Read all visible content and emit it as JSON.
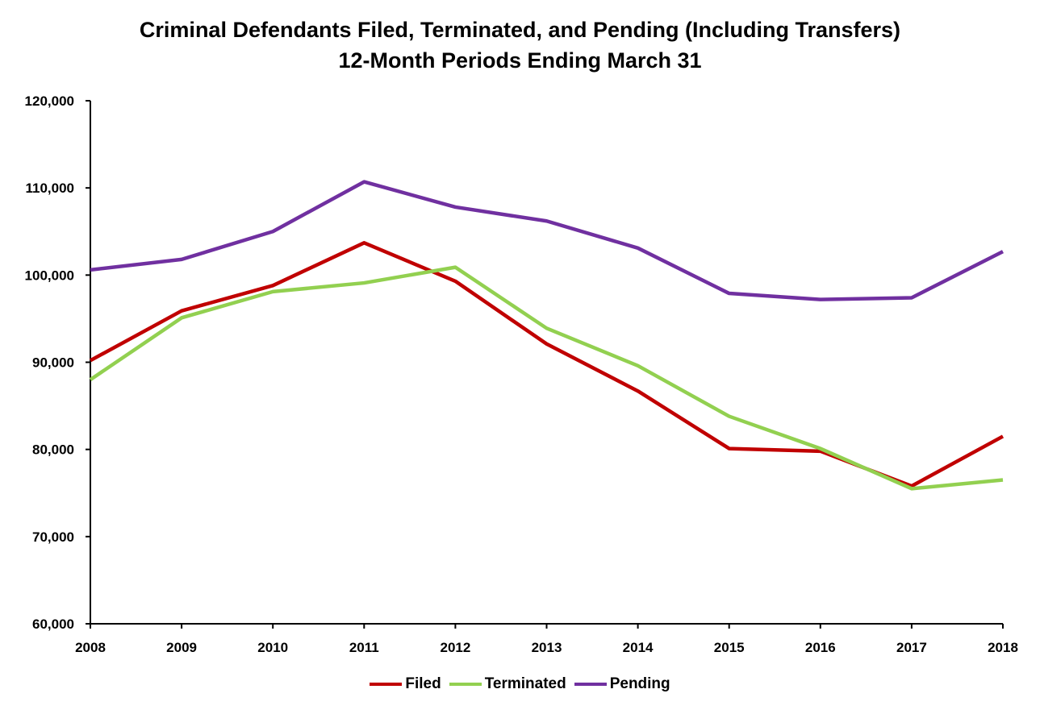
{
  "chart_data": {
    "type": "line",
    "title": "Criminal Defendants Filed, Terminated, and Pending (Including Transfers)",
    "subtitle": "12-Month Periods Ending March 31",
    "xlabel": "",
    "ylabel": "",
    "x": [
      "2008",
      "2009",
      "2010",
      "2011",
      "2012",
      "2013",
      "2014",
      "2015",
      "2016",
      "2017",
      "2018"
    ],
    "ylim": [
      60000,
      120000
    ],
    "yticks": [
      60000,
      70000,
      80000,
      90000,
      100000,
      110000,
      120000
    ],
    "ytick_labels": [
      "60,000",
      "70,000",
      "80,000",
      "90,000",
      "100,000",
      "110,000",
      "120,000"
    ],
    "grid": false,
    "legend_position": "bottom",
    "series": [
      {
        "name": "Filed",
        "color": "#C00000",
        "values": [
          90200,
          95900,
          98800,
          103700,
          99300,
          92100,
          86700,
          80100,
          79800,
          75800,
          81500
        ]
      },
      {
        "name": "Terminated",
        "color": "#92D050",
        "values": [
          88000,
          95100,
          98100,
          99100,
          100900,
          93900,
          89600,
          83800,
          80100,
          75500,
          76500
        ]
      },
      {
        "name": "Pending",
        "color": "#7030A0",
        "values": [
          100600,
          101800,
          105000,
          110700,
          107800,
          106200,
          103100,
          97900,
          97200,
          97400,
          102700
        ]
      }
    ]
  }
}
